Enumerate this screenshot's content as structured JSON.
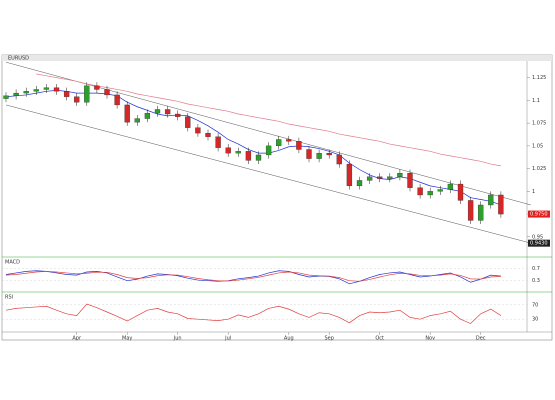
{
  "chart_data": {
    "type": "candlestick",
    "title": "EURUSD",
    "up_color": "#2ca02c",
    "down_color": "#d62728",
    "open": [
      1.102,
      1.105,
      1.108,
      1.11,
      1.112,
      1.114,
      1.11,
      1.104,
      1.098,
      1.116,
      1.112,
      1.106,
      1.095,
      1.076,
      1.08,
      1.086,
      1.09,
      1.085,
      1.082,
      1.07,
      1.064,
      1.06,
      1.048,
      1.042,
      1.044,
      1.034,
      1.04,
      1.05,
      1.057,
      1.055,
      1.046,
      1.036,
      1.042,
      1.04,
      1.03,
      1.006,
      1.012,
      1.016,
      1.014,
      1.016,
      1.02,
      1.004,
      0.996,
      1.0,
      1.002,
      1.008,
      0.99,
      0.968,
      0.985,
      0.996
    ],
    "high": [
      1.109,
      1.112,
      1.114,
      1.116,
      1.118,
      1.118,
      1.114,
      1.108,
      1.12,
      1.12,
      1.116,
      1.11,
      1.099,
      1.084,
      1.09,
      1.094,
      1.094,
      1.089,
      1.086,
      1.074,
      1.068,
      1.064,
      1.052,
      1.048,
      1.048,
      1.044,
      1.054,
      1.061,
      1.061,
      1.059,
      1.05,
      1.046,
      1.046,
      1.044,
      1.034,
      1.016,
      1.02,
      1.02,
      1.02,
      1.024,
      1.024,
      1.008,
      1.004,
      1.006,
      1.012,
      1.012,
      0.994,
      0.989,
      1.0,
      1.0
    ],
    "low": [
      1.098,
      1.101,
      1.104,
      1.106,
      1.108,
      1.106,
      1.1,
      1.094,
      1.094,
      1.108,
      1.102,
      1.091,
      1.072,
      1.072,
      1.076,
      1.082,
      1.081,
      1.078,
      1.066,
      1.06,
      1.056,
      1.044,
      1.038,
      1.038,
      1.03,
      1.03,
      1.036,
      1.046,
      1.051,
      1.042,
      1.032,
      1.032,
      1.036,
      1.026,
      1.002,
      1.002,
      1.008,
      1.01,
      1.01,
      1.012,
      1.0,
      0.992,
      0.992,
      0.996,
      0.998,
      0.986,
      0.964,
      0.964,
      0.981,
      0.971
    ],
    "close": [
      1.105,
      1.108,
      1.11,
      1.112,
      1.114,
      1.11,
      1.104,
      1.098,
      1.116,
      1.112,
      1.106,
      1.095,
      1.076,
      1.08,
      1.086,
      1.09,
      1.085,
      1.082,
      1.07,
      1.064,
      1.06,
      1.048,
      1.042,
      1.044,
      1.034,
      1.04,
      1.05,
      1.057,
      1.055,
      1.046,
      1.036,
      1.042,
      1.04,
      1.03,
      1.006,
      1.012,
      1.016,
      1.014,
      1.016,
      1.02,
      1.004,
      0.996,
      1.0,
      1.002,
      1.008,
      0.99,
      0.968,
      0.985,
      0.996,
      0.975
    ],
    "series": [
      {
        "color": "#2030d0",
        "values": [
          1.104,
          1.105,
          1.106,
          1.108,
          1.11,
          1.111,
          1.11,
          1.108,
          1.108,
          1.108,
          1.107,
          1.105,
          1.098,
          1.093,
          1.089,
          1.085,
          1.083,
          1.084,
          1.083,
          1.078,
          1.072,
          1.065,
          1.057,
          1.052,
          1.046,
          1.042,
          1.042,
          1.045,
          1.049,
          1.05,
          1.049,
          1.047,
          1.044,
          1.04,
          1.031,
          1.024,
          1.018,
          1.014,
          1.013,
          1.016,
          1.014,
          1.01,
          1.006,
          1.004,
          1.002,
          1.0,
          0.993,
          0.991,
          0.989,
          0.985
        ]
      },
      {
        "color": "#e07a8a",
        "values": [
          null,
          null,
          null,
          1.129,
          1.127,
          1.125,
          1.123,
          1.121,
          1.118,
          1.116,
          1.114,
          1.112,
          1.11,
          1.107,
          1.105,
          1.103,
          1.101,
          1.099,
          1.096,
          1.094,
          1.092,
          1.09,
          1.088,
          1.085,
          1.083,
          1.081,
          1.079,
          1.077,
          1.074,
          1.072,
          1.07,
          1.068,
          1.066,
          1.063,
          1.061,
          1.059,
          1.057,
          1.055,
          1.052,
          1.05,
          1.048,
          1.046,
          1.044,
          1.041,
          1.039,
          1.037,
          1.035,
          1.033,
          1.03,
          1.028
        ]
      }
    ],
    "channels": [
      {
        "y": [
          1.142,
          0.985
        ]
      },
      {
        "y": [
          1.095,
          0.943
        ]
      }
    ],
    "ylim": [
      0.93,
      1.14
    ],
    "yticks": [
      0.95,
      0.975,
      1,
      1.025,
      1.05,
      1.075,
      1.1,
      1.125
    ],
    "xticks": [
      {
        "value": 7,
        "label": "Apr"
      },
      {
        "value": 12,
        "label": "May"
      },
      {
        "value": 17,
        "label": "Jun"
      },
      {
        "value": 22,
        "label": "Jul"
      },
      {
        "value": 28,
        "label": "Aug"
      },
      {
        "value": 32,
        "label": "Sep"
      },
      {
        "value": 37,
        "label": "Oct"
      },
      {
        "value": 42,
        "label": "Nov"
      },
      {
        "value": 47,
        "label": "Dec"
      }
    ],
    "price_tags": [
      {
        "value": 0.975,
        "label": "0.9750",
        "color": "#e02020"
      },
      {
        "value": 0.943,
        "label": "0.9430",
        "color": "#222222"
      }
    ],
    "panels": [
      {
        "title": "MACD",
        "ylim": [
          0,
          1
        ],
        "yticks": [
          0.3,
          0.7
        ],
        "series": [
          {
            "color": "#2030d0",
            "values": [
              0.5,
              0.55,
              0.6,
              0.62,
              0.6,
              0.55,
              0.5,
              0.48,
              0.58,
              0.6,
              0.55,
              0.42,
              0.3,
              0.35,
              0.45,
              0.52,
              0.5,
              0.46,
              0.38,
              0.32,
              0.3,
              0.28,
              0.3,
              0.36,
              0.4,
              0.45,
              0.55,
              0.62,
              0.6,
              0.5,
              0.42,
              0.45,
              0.44,
              0.36,
              0.2,
              0.28,
              0.4,
              0.5,
              0.55,
              0.58,
              0.5,
              0.42,
              0.45,
              0.5,
              0.55,
              0.42,
              0.25,
              0.35,
              0.48,
              0.45
            ]
          },
          {
            "color": "#e04040",
            "values": [
              0.48,
              0.5,
              0.54,
              0.58,
              0.6,
              0.58,
              0.55,
              0.52,
              0.54,
              0.57,
              0.57,
              0.5,
              0.4,
              0.37,
              0.4,
              0.46,
              0.49,
              0.48,
              0.43,
              0.37,
              0.33,
              0.3,
              0.29,
              0.32,
              0.36,
              0.41,
              0.48,
              0.55,
              0.58,
              0.55,
              0.48,
              0.46,
              0.45,
              0.4,
              0.3,
              0.28,
              0.34,
              0.42,
              0.49,
              0.54,
              0.52,
              0.47,
              0.46,
              0.48,
              0.52,
              0.47,
              0.36,
              0.35,
              0.42,
              0.44
            ]
          }
        ]
      },
      {
        "title": "RSI",
        "ylim": [
          0,
          100
        ],
        "yticks": [
          30,
          70
        ],
        "series": [
          {
            "color": "#e04040",
            "values": [
              55,
              60,
              62,
              64,
              66,
              55,
              45,
              40,
              72,
              62,
              50,
              38,
              25,
              40,
              55,
              60,
              50,
              45,
              32,
              30,
              28,
              26,
              30,
              42,
              35,
              45,
              60,
              66,
              58,
              45,
              35,
              48,
              45,
              35,
              20,
              40,
              50,
              48,
              50,
              55,
              35,
              30,
              40,
              45,
              52,
              30,
              18,
              45,
              58,
              40
            ]
          }
        ]
      }
    ]
  }
}
